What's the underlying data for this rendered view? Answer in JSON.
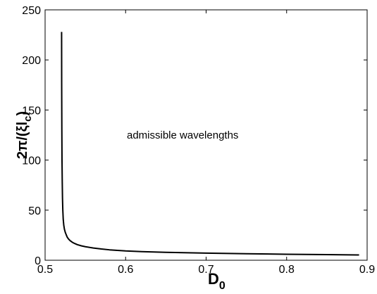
{
  "chart_data": {
    "type": "line",
    "xlabel": {
      "main": "D",
      "sub": "0"
    },
    "ylabel": {
      "pre": "2π/(ξl",
      "sub": "c",
      "post": ")"
    },
    "annotation": "admissible wavelengths",
    "xlim": [
      0.5,
      0.9
    ],
    "ylim": [
      0,
      250
    ],
    "xticks": [
      "0.5",
      "0.6",
      "0.7",
      "0.8",
      "0.9"
    ],
    "yticks": [
      "0",
      "50",
      "100",
      "150",
      "200",
      "250"
    ],
    "grid": false,
    "series": [
      {
        "color": "#000000",
        "x": [
          0.5205,
          0.5206,
          0.5208,
          0.521,
          0.5213,
          0.5216,
          0.522,
          0.5225,
          0.5232,
          0.524,
          0.525,
          0.5262,
          0.5275,
          0.529,
          0.531,
          0.5335,
          0.5365,
          0.54,
          0.545,
          0.55,
          0.56,
          0.57,
          0.58,
          0.6,
          0.62,
          0.65,
          0.7,
          0.75,
          0.8,
          0.85,
          0.89
        ],
        "y": [
          228,
          175,
          130,
          100,
          78,
          62,
          50,
          41,
          35,
          31,
          28,
          25.5,
          23,
          21.3,
          19.6,
          18.1,
          16.8,
          15.6,
          14.4,
          13.5,
          12.2,
          11.2,
          10.4,
          9.3,
          8.6,
          7.9,
          7.1,
          6.5,
          6.0,
          5.6,
          5.3
        ]
      }
    ]
  }
}
